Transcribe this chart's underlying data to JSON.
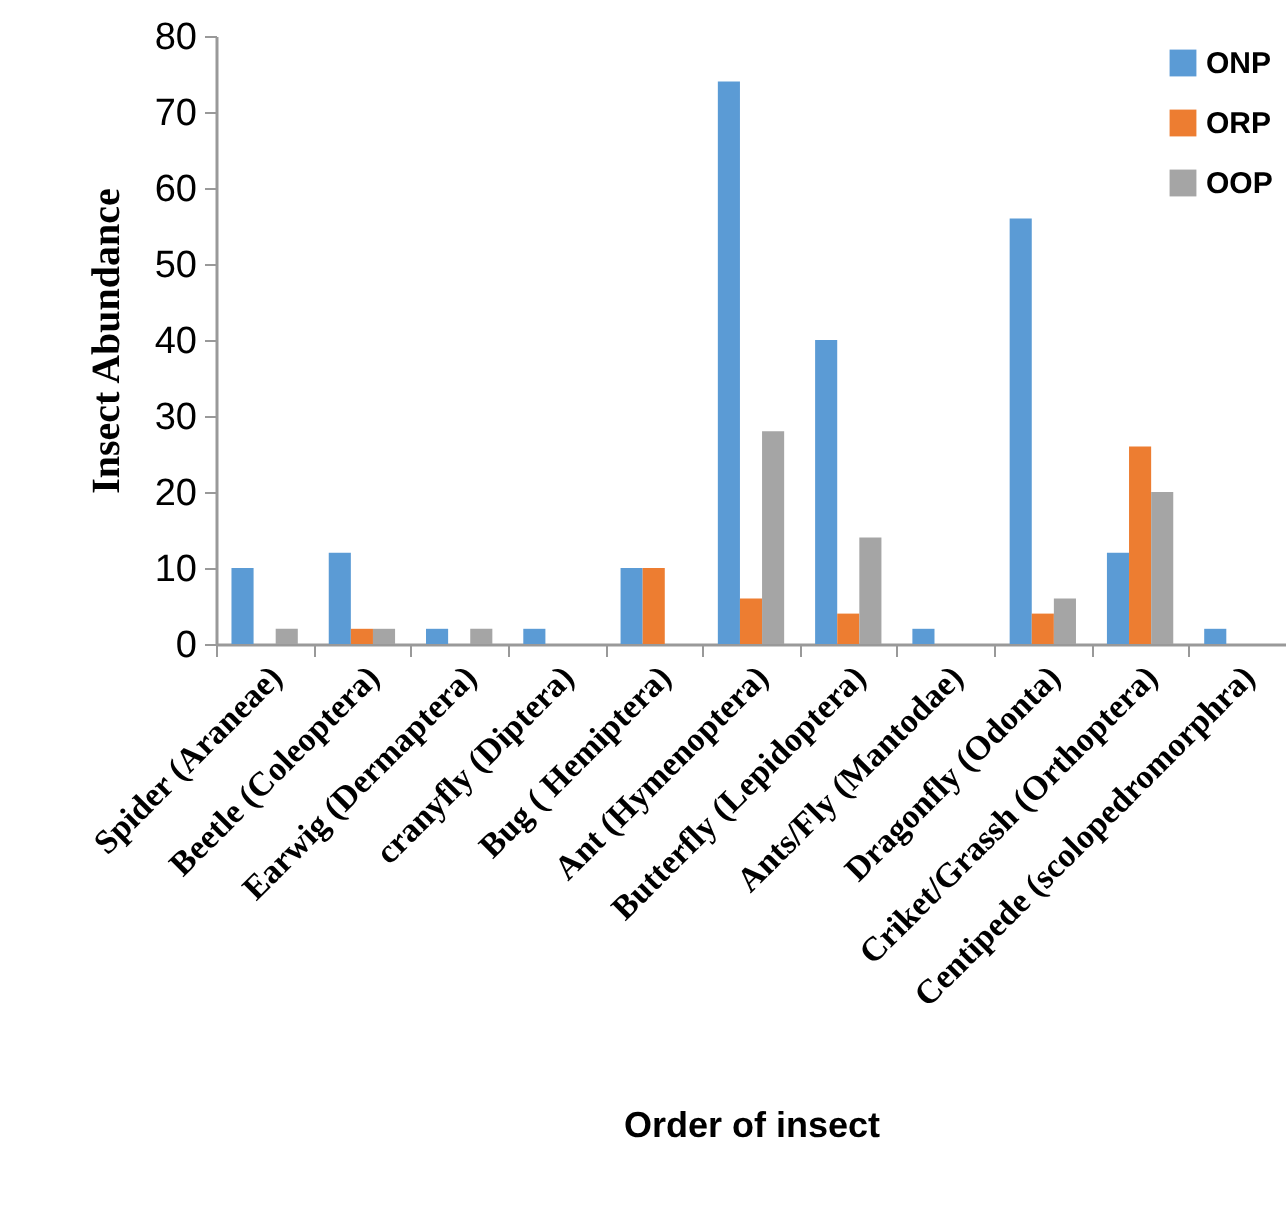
{
  "chart_data": {
    "type": "bar",
    "xlabel": "Order  of insect",
    "ylabel": "Insect Abundance",
    "categories": [
      "Spider (Araneae)",
      "Beetle (Coleoptera)",
      "Earwig (Dermaptera)",
      "cranyfly (Diptera)",
      "Bug ( Hemiptera)",
      "Ant (Hymenoptera)",
      "Butterfly (Lepidoptera)",
      "Ants/Fly (Mantodae)",
      "Dragonfly (Odonta)",
      "Criket/Grassh (Orthoptera)",
      "Centipede (scolopedromorphra)"
    ],
    "series": [
      {
        "name": "ONP",
        "color": "#5b9bd5",
        "values": [
          10,
          12,
          2,
          2,
          10,
          74,
          40,
          2,
          56,
          12,
          2
        ]
      },
      {
        "name": "ORP",
        "color": "#ed7d31",
        "values": [
          0,
          2,
          0,
          0,
          10,
          6,
          4,
          0,
          4,
          26,
          0
        ]
      },
      {
        "name": "OOP",
        "color": "#a5a5a5",
        "values": [
          2,
          2,
          2,
          0,
          0,
          28,
          14,
          0,
          6,
          20,
          0
        ]
      }
    ],
    "ylim": [
      0,
      80
    ],
    "yticks": [
      0,
      10,
      20,
      30,
      40,
      50,
      60,
      70,
      80
    ],
    "grid": false,
    "legend": "top right"
  }
}
